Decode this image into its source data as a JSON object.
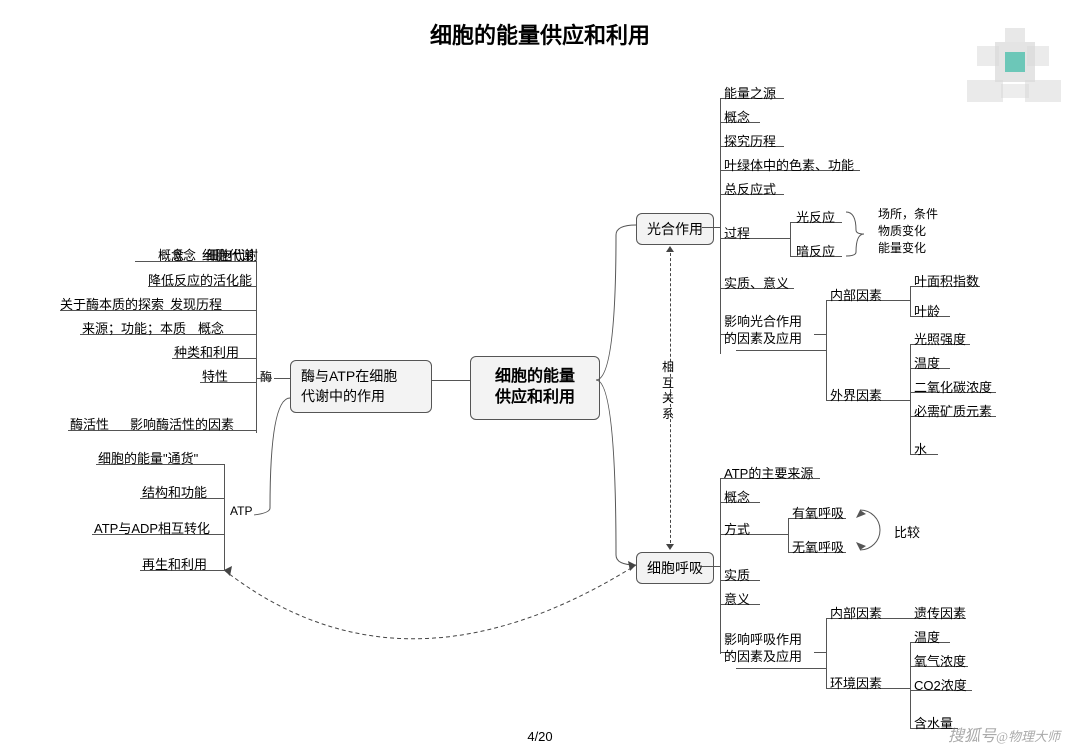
{
  "title": "细胞的能量供应和利用",
  "page": "4/20",
  "footer": {
    "brand": "搜狐号",
    "at": "@物理大师"
  },
  "center": "细胞的能量\n供应和利用",
  "left": {
    "main": "酶与ATP在细胞\n代谢中的作用",
    "enzyme_label": "酶",
    "atp_label": "ATP",
    "enzyme": {
      "a": {
        "main": "概念",
        "sub": "细胞代谢"
      },
      "b": {
        "main": "降低反应的活化能"
      },
      "c": {
        "main": "发现历程",
        "sub": "关于酶本质的探索"
      },
      "d": {
        "main": "概念",
        "sub": "来源；功能；本质"
      },
      "e": {
        "main": "种类和利用"
      },
      "f": {
        "main": "特性"
      },
      "g": {
        "main": "影响酶活性的因素",
        "sub": "酶活性"
      }
    },
    "atp": {
      "a": "细胞的能量\"通货\"",
      "b": "结构和功能",
      "c": "ATP与ADP相互转化",
      "d": "再生和利用"
    }
  },
  "right": {
    "photo": {
      "label": "光合作用",
      "a": "能量之源",
      "b": "概念",
      "c": "探究历程",
      "d": "叶绿体中的色素、功能",
      "e": "总反应式",
      "f": {
        "main": "过程",
        "sub1": "光反应",
        "sub2": "暗反应",
        "note": "场所，条件\n物质变化\n能量变化"
      },
      "g": "实质、意义",
      "h": {
        "main": "影响光合作用\n的因素及应用",
        "int": "内部因素",
        "int_a": "叶面积指数",
        "int_b": "叶龄",
        "ext": "外界因素",
        "ext_a": "光照强度",
        "ext_b": "温度",
        "ext_c": "二氧化碳浓度",
        "ext_d": "必需矿质元素",
        "ext_e": "水"
      }
    },
    "resp": {
      "label": "细胞呼吸",
      "a": "ATP的主要来源",
      "b": "概念",
      "c": {
        "main": "方式",
        "c1": "有氧呼吸",
        "c2": "无氧呼吸",
        "cmp": "比较"
      },
      "d": "实质",
      "e": "意义",
      "f": {
        "main": "影响呼吸作用\n的因素及应用",
        "int": "内部因素",
        "int_a": "遗传因素",
        "ext": "环境因素",
        "ext_a": "温度",
        "ext_b": "氧气浓度",
        "ext_c": "CO2浓度",
        "ext_d": "含水量"
      }
    },
    "relation": "相\n互\n关\n系"
  }
}
